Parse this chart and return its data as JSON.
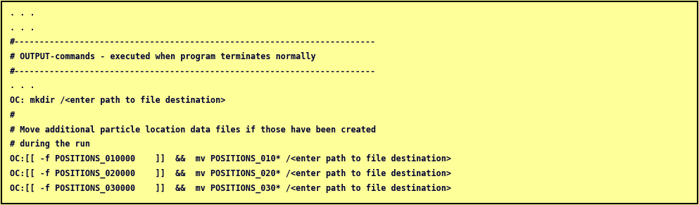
{
  "background_color": "#ffff99",
  "border_color": "#000000",
  "text_color": "#000033",
  "font_family": "monospace",
  "font_size": 8.5,
  "lines": [
    ". . .",
    ". . .",
    "#------------------------------------------------------------------------",
    "# OUTPUT-commands - executed when program terminates normally",
    "#------------------------------------------------------------------------",
    ". . .",
    "OC: mkdir /<enter path to file destination>",
    "#",
    "# Move additional particle location data files if those have been created",
    "# during the run",
    "OC:[[ -f POSITIONS_010000    ]]  &&  mv POSITIONS_010* /<enter path to file destination>",
    "OC:[[ -f POSITIONS_020000    ]]  &&  mv POSITIONS_020* /<enter path to file destination>",
    "OC:[[ -f POSITIONS_030000    ]]  &&  mv POSITIONS_030* /<enter path to file destination>"
  ],
  "fig_width": 9.93,
  "fig_height": 2.91,
  "dpi": 100
}
